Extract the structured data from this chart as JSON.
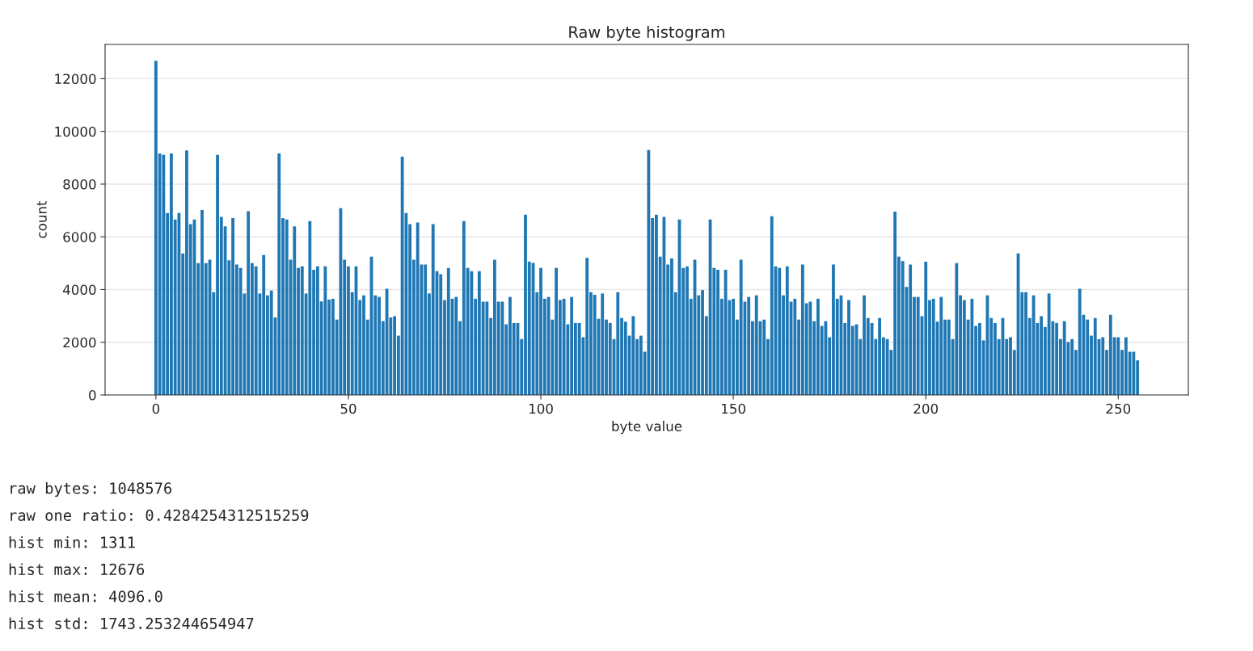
{
  "chart_data": {
    "type": "bar",
    "title": "Raw byte histogram",
    "xlabel": "byte value",
    "ylabel": "count",
    "x": [
      0,
      1,
      2,
      3,
      4,
      5,
      6,
      7,
      8,
      9,
      10,
      11,
      12,
      13,
      14,
      15,
      16,
      17,
      18,
      19,
      20,
      21,
      22,
      23,
      24,
      25,
      26,
      27,
      28,
      29,
      30,
      31,
      32,
      33,
      34,
      35,
      36,
      37,
      38,
      39,
      40,
      41,
      42,
      43,
      44,
      45,
      46,
      47,
      48,
      49,
      50,
      51,
      52,
      53,
      54,
      55,
      56,
      57,
      58,
      59,
      60,
      61,
      62,
      63,
      64,
      65,
      66,
      67,
      68,
      69,
      70,
      71,
      72,
      73,
      74,
      75,
      76,
      77,
      78,
      79,
      80,
      81,
      82,
      83,
      84,
      85,
      86,
      87,
      88,
      89,
      90,
      91,
      92,
      93,
      94,
      95,
      96,
      97,
      98,
      99,
      100,
      101,
      102,
      103,
      104,
      105,
      106,
      107,
      108,
      109,
      110,
      111,
      112,
      113,
      114,
      115,
      116,
      117,
      118,
      119,
      120,
      121,
      122,
      123,
      124,
      125,
      126,
      127,
      128,
      129,
      130,
      131,
      132,
      133,
      134,
      135,
      136,
      137,
      138,
      139,
      140,
      141,
      142,
      143,
      144,
      145,
      146,
      147,
      148,
      149,
      150,
      151,
      152,
      153,
      154,
      155,
      156,
      157,
      158,
      159,
      160,
      161,
      162,
      163,
      164,
      165,
      166,
      167,
      168,
      169,
      170,
      171,
      172,
      173,
      174,
      175,
      176,
      177,
      178,
      179,
      180,
      181,
      182,
      183,
      184,
      185,
      186,
      187,
      188,
      189,
      190,
      191,
      192,
      193,
      194,
      195,
      196,
      197,
      198,
      199,
      200,
      201,
      202,
      203,
      204,
      205,
      206,
      207,
      208,
      209,
      210,
      211,
      212,
      213,
      214,
      215,
      216,
      217,
      218,
      219,
      220,
      221,
      222,
      223,
      224,
      225,
      226,
      227,
      228,
      229,
      230,
      231,
      232,
      233,
      234,
      235,
      236,
      237,
      238,
      239,
      240,
      241,
      242,
      243,
      244,
      245,
      246,
      247,
      248,
      249,
      250,
      251,
      252,
      253,
      254,
      255
    ],
    "values": [
      12676,
      9160,
      9110,
      6900,
      9160,
      6660,
      6900,
      5370,
      9280,
      6480,
      6660,
      5000,
      7020,
      5000,
      5130,
      3900,
      9110,
      6760,
      6400,
      5110,
      6710,
      4950,
      4820,
      3850,
      6970,
      5000,
      4880,
      3850,
      5310,
      3780,
      3960,
      2940,
      9160,
      6710,
      6660,
      5130,
      6400,
      4820,
      4880,
      3850,
      6600,
      4750,
      4880,
      3550,
      4880,
      3620,
      3650,
      2860,
      7090,
      5130,
      4880,
      3900,
      4880,
      3600,
      3780,
      2860,
      5250,
      3780,
      3720,
      2800,
      4030,
      2940,
      2990,
      2250,
      9040,
      6900,
      6480,
      5130,
      6540,
      4950,
      4950,
      3850,
      6480,
      4700,
      4580,
      3600,
      4820,
      3650,
      3720,
      2800,
      6600,
      4820,
      4700,
      3650,
      4700,
      3540,
      3540,
      2920,
      5130,
      3540,
      3540,
      2680,
      3720,
      2730,
      2730,
      2120,
      6840,
      5060,
      5010,
      3900,
      4820,
      3650,
      3720,
      2860,
      4820,
      3600,
      3650,
      2680,
      3720,
      2730,
      2730,
      2190,
      5200,
      3900,
      3800,
      2890,
      3850,
      2860,
      2730,
      2120,
      3900,
      2920,
      2780,
      2250,
      2990,
      2120,
      2250,
      1640,
      9290,
      6710,
      6840,
      5250,
      6760,
      4950,
      5180,
      3900,
      6660,
      4820,
      4880,
      3650,
      5130,
      3780,
      3980,
      2990,
      6660,
      4820,
      4750,
      3650,
      4750,
      3600,
      3650,
      2860,
      5130,
      3540,
      3720,
      2800,
      3780,
      2800,
      2860,
      2120,
      6780,
      4880,
      4820,
      3780,
      4880,
      3540,
      3650,
      2860,
      4950,
      3480,
      3540,
      2800,
      3650,
      2620,
      2800,
      2190,
      4950,
      3650,
      3780,
      2730,
      3600,
      2620,
      2680,
      2120,
      3780,
      2920,
      2730,
      2120,
      2920,
      2190,
      2120,
      1710,
      6960,
      5250,
      5080,
      4100,
      4950,
      3720,
      3720,
      2990,
      5060,
      3600,
      3650,
      2780,
      3720,
      2860,
      2860,
      2120,
      5000,
      3780,
      3600,
      2860,
      3650,
      2620,
      2730,
      2070,
      3780,
      2920,
      2730,
      2120,
      2920,
      2120,
      2190,
      1710,
      5370,
      3900,
      3900,
      2920,
      3780,
      2730,
      2990,
      2580,
      3850,
      2800,
      2730,
      2120,
      2800,
      2010,
      2120,
      1710,
      4030,
      3040,
      2860,
      2250,
      2920,
      2120,
      2190,
      1710,
      3040,
      2190,
      2190,
      1710,
      2190,
      1640,
      1640,
      1311
    ],
    "color": "#1f77b4",
    "xlim": [
      -13.2,
      268.2
    ],
    "xticks": [
      0,
      50,
      100,
      150,
      200,
      250
    ],
    "ylim": [
      0,
      13300
    ],
    "yticks": [
      0,
      2000,
      4000,
      6000,
      8000,
      10000,
      12000
    ],
    "grid": "y",
    "annotations": [
      "raw bytes: 1048576",
      "raw one ratio: 0.4284254312515259",
      "hist min: 1311",
      "hist max: 12676",
      "hist mean: 4096.0",
      "hist std: 1743.253244654947"
    ]
  }
}
